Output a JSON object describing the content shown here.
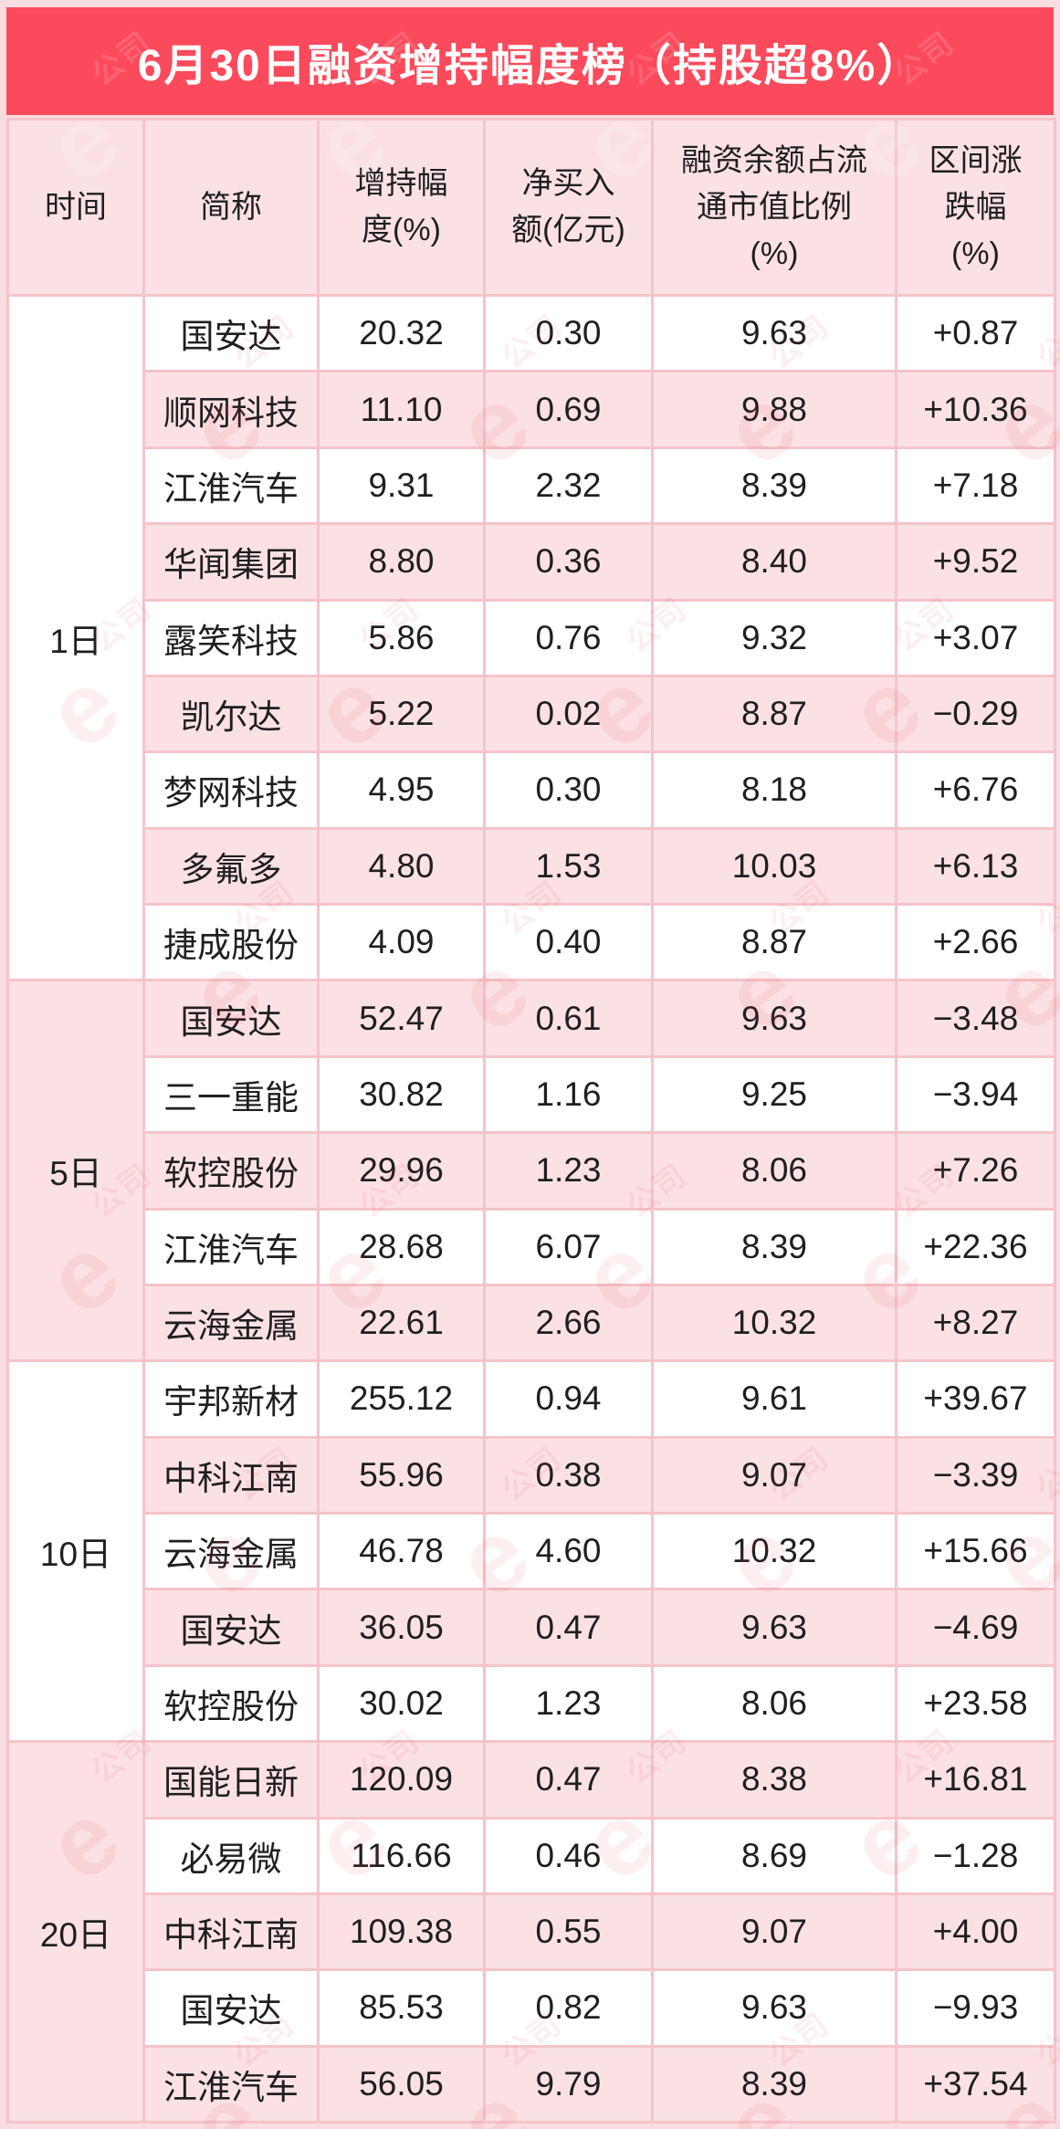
{
  "title": "6月30日融资增持幅度榜（持股超8%）",
  "watermark": {
    "symbol": "e",
    "label": "公司"
  },
  "colors": {
    "title_bar": "#fa4a5b",
    "title_text": "#ffffff",
    "pink_cell": "#fbe1e4",
    "white_cell": "#ffffff",
    "grid_border": "#f6c3ca",
    "page_background": "#fadde1",
    "body_text": "#1f1f1f"
  },
  "chart_data": {
    "type": "table",
    "title": "6月30日融资增持幅度榜（持股超8%）",
    "columns": [
      "时间",
      "简称",
      "增持幅度(%)",
      "净买入额(亿元)",
      "融资余额占流通市值比例(%)",
      "区间涨跌幅(%)"
    ],
    "header_lines": [
      [
        "时间"
      ],
      [
        "简称"
      ],
      [
        "增持幅",
        "度(%)"
      ],
      [
        "净买入",
        "额(亿元)"
      ],
      [
        "融资余额占流",
        "通市值比例",
        "(%)"
      ],
      [
        "区间涨",
        "跌幅",
        "(%)"
      ]
    ],
    "groups": [
      {
        "time": "1日",
        "rows": [
          {
            "name": "国安达",
            "increase": "20.32",
            "net_buy": "0.30",
            "ratio": "9.63",
            "change": "+0.87"
          },
          {
            "name": "顺网科技",
            "increase": "11.10",
            "net_buy": "0.69",
            "ratio": "9.88",
            "change": "+10.36"
          },
          {
            "name": "江淮汽车",
            "increase": "9.31",
            "net_buy": "2.32",
            "ratio": "8.39",
            "change": "+7.18"
          },
          {
            "name": "华闻集团",
            "increase": "8.80",
            "net_buy": "0.36",
            "ratio": "8.40",
            "change": "+9.52"
          },
          {
            "name": "露笑科技",
            "increase": "5.86",
            "net_buy": "0.76",
            "ratio": "9.32",
            "change": "+3.07"
          },
          {
            "name": "凯尔达",
            "increase": "5.22",
            "net_buy": "0.02",
            "ratio": "8.87",
            "change": "−0.29"
          },
          {
            "name": "梦网科技",
            "increase": "4.95",
            "net_buy": "0.30",
            "ratio": "8.18",
            "change": "+6.76"
          },
          {
            "name": "多氟多",
            "increase": "4.80",
            "net_buy": "1.53",
            "ratio": "10.03",
            "change": "+6.13"
          },
          {
            "name": "捷成股份",
            "increase": "4.09",
            "net_buy": "0.40",
            "ratio": "8.87",
            "change": "+2.66"
          }
        ]
      },
      {
        "time": "5日",
        "rows": [
          {
            "name": "国安达",
            "increase": "52.47",
            "net_buy": "0.61",
            "ratio": "9.63",
            "change": "−3.48"
          },
          {
            "name": "三一重能",
            "increase": "30.82",
            "net_buy": "1.16",
            "ratio": "9.25",
            "change": "−3.94"
          },
          {
            "name": "软控股份",
            "increase": "29.96",
            "net_buy": "1.23",
            "ratio": "8.06",
            "change": "+7.26"
          },
          {
            "name": "江淮汽车",
            "increase": "28.68",
            "net_buy": "6.07",
            "ratio": "8.39",
            "change": "+22.36"
          },
          {
            "name": "云海金属",
            "increase": "22.61",
            "net_buy": "2.66",
            "ratio": "10.32",
            "change": "+8.27"
          }
        ]
      },
      {
        "time": "10日",
        "rows": [
          {
            "name": "宇邦新材",
            "increase": "255.12",
            "net_buy": "0.94",
            "ratio": "9.61",
            "change": "+39.67"
          },
          {
            "name": "中科江南",
            "increase": "55.96",
            "net_buy": "0.38",
            "ratio": "9.07",
            "change": "−3.39"
          },
          {
            "name": "云海金属",
            "increase": "46.78",
            "net_buy": "4.60",
            "ratio": "10.32",
            "change": "+15.66"
          },
          {
            "name": "国安达",
            "increase": "36.05",
            "net_buy": "0.47",
            "ratio": "9.63",
            "change": "−4.69"
          },
          {
            "name": "软控股份",
            "increase": "30.02",
            "net_buy": "1.23",
            "ratio": "8.06",
            "change": "+23.58"
          }
        ]
      },
      {
        "time": "20日",
        "rows": [
          {
            "name": "国能日新",
            "increase": "120.09",
            "net_buy": "0.47",
            "ratio": "8.38",
            "change": "+16.81"
          },
          {
            "name": "必易微",
            "increase": "116.66",
            "net_buy": "0.46",
            "ratio": "8.69",
            "change": "−1.28"
          },
          {
            "name": "中科江南",
            "increase": "109.38",
            "net_buy": "0.55",
            "ratio": "9.07",
            "change": "+4.00"
          },
          {
            "name": "国安达",
            "increase": "85.53",
            "net_buy": "0.82",
            "ratio": "9.63",
            "change": "−9.93"
          },
          {
            "name": "江淮汽车",
            "increase": "56.05",
            "net_buy": "9.79",
            "ratio": "8.39",
            "change": "+37.54"
          }
        ]
      }
    ]
  }
}
